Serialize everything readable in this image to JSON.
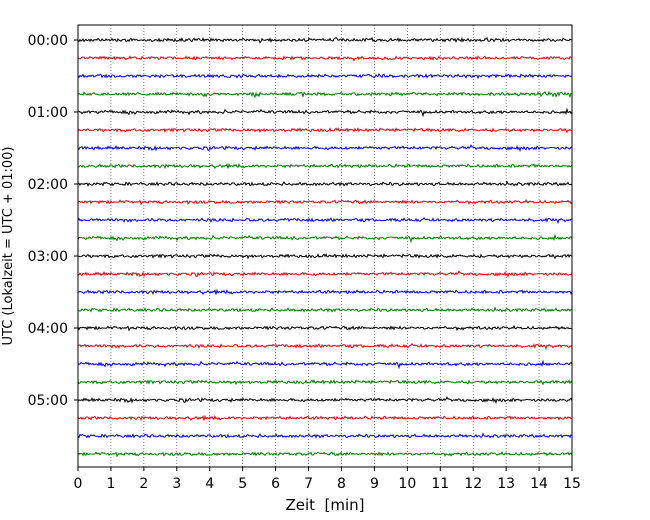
{
  "chart_data": {
    "type": "line",
    "title": "",
    "xlabel": "Zeit  [min]",
    "ylabel": "UTC (Lokalzeit = UTC + 01:00)",
    "xlim": [
      0,
      15
    ],
    "x_ticks": [
      "0",
      "1",
      "2",
      "3",
      "4",
      "5",
      "6",
      "7",
      "8",
      "9",
      "10",
      "11",
      "12",
      "13",
      "14",
      "15"
    ],
    "y_tick_labels": [
      "00:00",
      "01:00",
      "02:00",
      "03:00",
      "04:00",
      "05:00"
    ],
    "grid": "vertical dotted",
    "trace_interval_minutes": 15,
    "trace_count": 24,
    "trace_colors": [
      "#000000",
      "#ff0000",
      "#0000ff",
      "#008000"
    ],
    "trace_start_times": [
      "00:00",
      "00:15",
      "00:30",
      "00:45",
      "01:00",
      "01:15",
      "01:30",
      "01:45",
      "02:00",
      "02:15",
      "02:30",
      "02:45",
      "03:00",
      "03:15",
      "03:30",
      "03:45",
      "04:00",
      "04:15",
      "04:30",
      "04:45",
      "05:00",
      "05:15",
      "05:30",
      "05:45"
    ]
  }
}
